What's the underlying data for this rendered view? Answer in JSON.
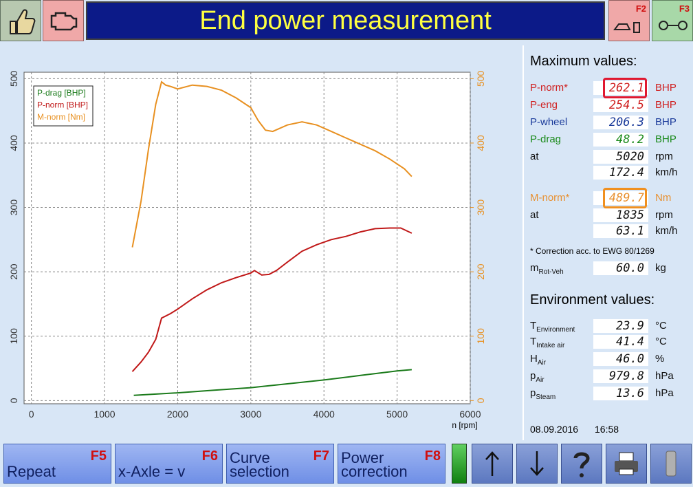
{
  "header": {
    "title": "End power measurement",
    "keys": [
      "F2",
      "F3"
    ]
  },
  "chart_data": {
    "type": "line",
    "x_label": "n [rpm]",
    "xlim": [
      -100,
      6000
    ],
    "xticks": [
      0,
      1000,
      2000,
      3000,
      4000,
      5000,
      6000
    ],
    "ylim": [
      -5,
      510
    ],
    "yticks": [
      0,
      100,
      200,
      300,
      400,
      500
    ],
    "y2lim": [
      -5,
      510
    ],
    "y2ticks": [
      0,
      100,
      200,
      300,
      400,
      500
    ],
    "y2_color": "#e89020",
    "grid": true,
    "legend": "upper left",
    "series": [
      {
        "name": "P-drag [BHP]",
        "color": "#1a7a1a",
        "x": [
          1400,
          2000,
          2500,
          3000,
          3500,
          4000,
          4500,
          5000,
          5200
        ],
        "values": [
          8,
          12,
          16,
          20,
          26,
          32,
          39,
          46,
          48
        ]
      },
      {
        "name": "P-norm [BHP]",
        "color": "#c01818",
        "x": [
          1380,
          1500,
          1600,
          1700,
          1780,
          1900,
          2000,
          2200,
          2400,
          2600,
          2800,
          3000,
          3050,
          3150,
          3250,
          3350,
          3500,
          3700,
          3900,
          4100,
          4300,
          4500,
          4700,
          4900,
          5050,
          5200
        ],
        "values": [
          45,
          60,
          75,
          95,
          128,
          135,
          142,
          158,
          172,
          183,
          191,
          198,
          202,
          195,
          196,
          202,
          215,
          232,
          242,
          250,
          255,
          262,
          267,
          268,
          268,
          260
        ]
      },
      {
        "name": "M-norm [Nm]",
        "color": "#e89020",
        "axis": "y2",
        "x": [
          1380,
          1500,
          1600,
          1700,
          1780,
          1835,
          1900,
          2000,
          2200,
          2400,
          2600,
          2800,
          3000,
          3100,
          3200,
          3300,
          3500,
          3700,
          3900,
          4100,
          4300,
          4500,
          4700,
          4900,
          5100,
          5200
        ],
        "values": [
          238,
          310,
          390,
          460,
          495,
          490,
          488,
          484,
          490,
          488,
          482,
          470,
          455,
          435,
          420,
          418,
          428,
          433,
          428,
          418,
          408,
          398,
          388,
          375,
          360,
          348
        ]
      }
    ]
  },
  "max_values": {
    "title": "Maximum values:",
    "power_rows": [
      {
        "label": "P-norm*",
        "value": "262.1",
        "unit": "BHP",
        "color": "#d02020",
        "outline": "#e01830"
      },
      {
        "label": "P-eng",
        "value": "254.5",
        "unit": "BHP",
        "color": "#d02020"
      },
      {
        "label": "P-wheel",
        "value": "206.3",
        "unit": "BHP",
        "color": "#1a3a9a"
      },
      {
        "label": "P-drag",
        "value": "48.2",
        "unit": "BHP",
        "color": "#1a8a1a"
      },
      {
        "label": "at",
        "value": "5020",
        "unit": "rpm",
        "color": "#101010"
      },
      {
        "value": "172.4",
        "unit": "km/h",
        "color": "#101010"
      }
    ],
    "torque_rows": [
      {
        "label": "M-norm*",
        "value": "489.7",
        "unit": "Nm",
        "color": "#e89030",
        "outline": "#f09020"
      },
      {
        "label": "at",
        "value": "1835",
        "unit": "rpm",
        "color": "#101010"
      },
      {
        "value": "63.1",
        "unit": "km/h",
        "color": "#101010"
      }
    ],
    "footnote": "* Correction acc. to EWG 80/1269",
    "mass_row": {
      "label": "m",
      "sub": "Rot-Veh",
      "value": "60.0",
      "unit": "kg",
      "color": "#101010"
    }
  },
  "environment": {
    "title": "Environment values:",
    "rows": [
      {
        "label": "T",
        "sub": "Environment",
        "value": "23.9",
        "unit": "°C",
        "color": "#101010"
      },
      {
        "label": "T",
        "sub": "Intake air",
        "value": "41.4",
        "unit": "°C",
        "color": "#101010"
      },
      {
        "label": "H",
        "sub": "Air",
        "value": "46.0",
        "unit": "%",
        "color": "#101010"
      },
      {
        "label": "p",
        "sub": "Air",
        "value": "979.8",
        "unit": "hPa",
        "color": "#101010"
      },
      {
        "label": "p",
        "sub": "Steam",
        "value": "13.6",
        "unit": "hPa",
        "color": "#101010"
      }
    ]
  },
  "status": {
    "date": "08.09.2016",
    "time": "16:58"
  },
  "buttons": [
    {
      "label": "Repeat",
      "key": "F5"
    },
    {
      "label": "x-Axle = v",
      "key": "F6"
    },
    {
      "label": "Curve selection",
      "key": "F7"
    },
    {
      "label": "Power correction",
      "key": "F8"
    }
  ]
}
